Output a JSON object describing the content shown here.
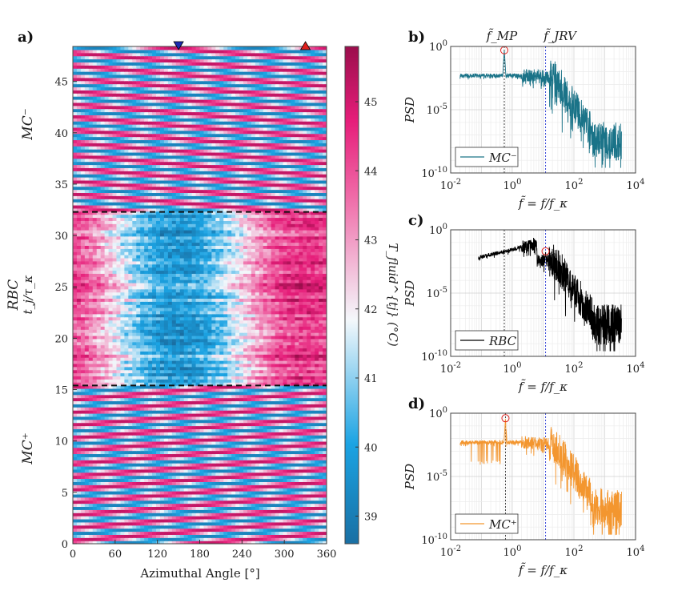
{
  "chart_data": [
    {
      "id": "a",
      "type": "heatmap",
      "panel_label": "a)",
      "xlabel": "Azimuthal Angle [°]",
      "ylabel": "t_j/τ_κ",
      "xlim": [
        0,
        360
      ],
      "ylim": [
        0,
        48.4
      ],
      "xticks": [
        0,
        60,
        120,
        180,
        240,
        300,
        360
      ],
      "yticks": [
        0,
        5,
        10,
        15,
        20,
        25,
        30,
        35,
        40,
        45
      ],
      "colorbar": {
        "label": "T_fluid^{tj} (°C)",
        "range": [
          38.6,
          45.8
        ],
        "ticks": [
          39,
          40,
          41,
          42,
          43,
          44,
          45
        ]
      },
      "regions": [
        {
          "name": "MC+",
          "label": "MC⁺",
          "from": 0,
          "to": 15.4,
          "color": "#f39a30"
        },
        {
          "name": "RBC",
          "label": "RBC",
          "from": 15.4,
          "to": 32.3,
          "color": "#111111"
        },
        {
          "name": "MC-",
          "label": "MC⁻",
          "from": 32.3,
          "to": 48.4,
          "color": "#2aa0c8"
        }
      ],
      "dashed_boundaries": [
        15.4,
        32.3
      ],
      "markers": [
        {
          "name": "blue-down-triangle",
          "angle": 150,
          "color": "#1a2bb0",
          "shape": "triangle-down"
        },
        {
          "name": "red-up-triangle",
          "angle": 330,
          "color": "#e0201c",
          "shape": "triangle-up"
        }
      ]
    },
    {
      "id": "b",
      "type": "line",
      "panel_label": "b)",
      "ylabel": "PSD",
      "xlabel": "f̃ = f/f_κ",
      "x_scale": "log",
      "y_scale": "log",
      "xlim": [
        0.01,
        10000
      ],
      "ylim": [
        1e-10,
        1
      ],
      "xtick_exponents": [
        -2,
        0,
        2,
        4
      ],
      "ytick_exponents": [
        -10,
        -5,
        0
      ],
      "series": [
        {
          "name": "MC⁻",
          "color": "#1a7388"
        }
      ],
      "peak": {
        "x": 0.55,
        "y": 0.5
      },
      "ref_lines": [
        {
          "name": "f̃_MP",
          "x": 0.55,
          "color": "#444444"
        },
        {
          "name": "f̃_JRV",
          "x": 12,
          "color": "#3a48d8"
        }
      ],
      "annotations": [
        "f̃_MP",
        "f̃_JRV"
      ],
      "legend": "bottom-left"
    },
    {
      "id": "c",
      "type": "line",
      "panel_label": "c)",
      "ylabel": "PSD",
      "xlabel": "f̃ = f/f_κ",
      "x_scale": "log",
      "y_scale": "log",
      "xlim": [
        0.01,
        10000
      ],
      "ylim": [
        1e-10,
        1
      ],
      "xtick_exponents": [
        -2,
        0,
        2,
        4
      ],
      "ytick_exponents": [
        -10,
        -5,
        0
      ],
      "series": [
        {
          "name": "RBC",
          "color": "#000000"
        }
      ],
      "peak": {
        "x": 12,
        "y": 0.02
      },
      "ref_lines": [
        {
          "name": "f̃_MP",
          "x": 0.55,
          "color": "#444444"
        },
        {
          "name": "f̃_JRV",
          "x": 12,
          "color": "#3a48d8"
        }
      ],
      "legend": "bottom-left"
    },
    {
      "id": "d",
      "type": "line",
      "panel_label": "d)",
      "ylabel": "PSD",
      "xlabel": "f̃ = f/f_κ",
      "x_scale": "log",
      "y_scale": "log",
      "xlim": [
        0.01,
        10000
      ],
      "ylim": [
        1e-10,
        1
      ],
      "xtick_exponents": [
        -2,
        0,
        2,
        4
      ],
      "ytick_exponents": [
        -10,
        -5,
        0
      ],
      "series": [
        {
          "name": "MC⁺",
          "color": "#f3962f"
        }
      ],
      "peak": {
        "x": 0.6,
        "y": 0.4
      },
      "ref_lines": [
        {
          "name": "f̃_MP",
          "x": 0.6,
          "color": "#444444"
        },
        {
          "name": "f̃_JRV",
          "x": 12,
          "color": "#3a48d8"
        }
      ],
      "legend": "bottom-left"
    }
  ]
}
